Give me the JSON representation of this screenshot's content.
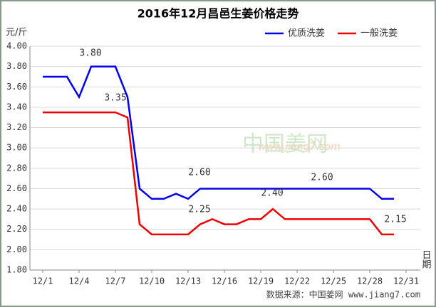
{
  "chart_data": {
    "type": "line",
    "title": "2016年12月昌邑生姜价格走势",
    "y_label": "元/斤",
    "x_label": "日期",
    "source": "数据来源：中国姜网 www.jiang7.com",
    "watermark": "中国姜网",
    "watermark_url": "www.jiang7.com",
    "categories": [
      "12/1",
      null,
      null,
      "12/4",
      null,
      null,
      "12/7",
      null,
      null,
      "12/10",
      null,
      null,
      "12/13",
      null,
      null,
      "12/16",
      null,
      null,
      "12/19",
      null,
      null,
      "12/22",
      null,
      null,
      "12/25",
      null,
      null,
      "12/28",
      null,
      null,
      "12/31"
    ],
    "series": [
      {
        "name": "优质洗姜",
        "color": "#0000ee",
        "values": [
          3.7,
          3.7,
          3.7,
          3.5,
          3.8,
          3.8,
          3.8,
          3.5,
          2.6,
          2.5,
          2.5,
          2.55,
          2.5,
          2.6,
          2.6,
          2.6,
          2.6,
          2.6,
          2.6,
          2.6,
          2.6,
          2.6,
          2.6,
          2.6,
          2.6,
          2.6,
          2.6,
          2.6,
          2.5,
          2.5,
          null
        ]
      },
      {
        "name": "一般洗姜",
        "color": "#ee0000",
        "values": [
          3.35,
          3.35,
          3.35,
          3.35,
          3.35,
          3.35,
          3.35,
          3.3,
          2.25,
          2.15,
          2.15,
          2.15,
          2.15,
          2.25,
          2.3,
          2.25,
          2.25,
          2.3,
          2.3,
          2.4,
          2.3,
          2.3,
          2.3,
          2.3,
          2.3,
          2.3,
          2.3,
          2.3,
          2.15,
          2.15,
          null
        ]
      }
    ],
    "annotations": [
      "3.80",
      "3.35",
      "2.60",
      "2.60",
      "2.40",
      "2.25",
      "2.15"
    ],
    "ylim": [
      1.8,
      4.0
    ],
    "yticks": [
      {
        "value": 1.8,
        "label": "1.80"
      },
      {
        "value": 2.0,
        "label": "2.00"
      },
      {
        "value": 2.2,
        "label": "2.20"
      },
      {
        "value": 2.4,
        "label": "2.40"
      },
      {
        "value": 2.6,
        "label": "2.60"
      },
      {
        "value": 2.8,
        "label": "2.80"
      },
      {
        "value": 3.0,
        "label": "3.00"
      },
      {
        "value": 3.2,
        "label": "3.20"
      },
      {
        "value": 3.4,
        "label": "3.40"
      },
      {
        "value": 3.6,
        "label": "3.60"
      },
      {
        "value": 3.8,
        "label": "3.80"
      },
      {
        "value": 4.0,
        "label": "4.00"
      }
    ],
    "grid": true,
    "legend": "top-right"
  }
}
